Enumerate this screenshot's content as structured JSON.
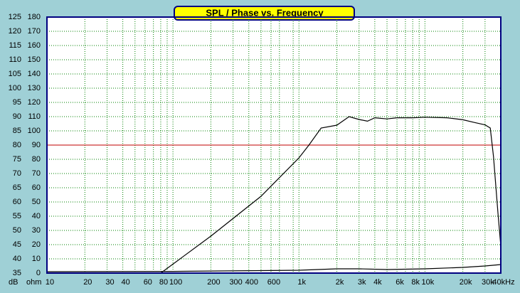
{
  "chart_data": {
    "type": "line",
    "title": "SPL / Phase vs. Frequency",
    "y_axis_label": "dB",
    "y2_axis_label": "ohm",
    "log_x": true,
    "grid": true,
    "xlim": [
      10,
      40000
    ],
    "xticks": [
      10,
      20,
      30,
      40,
      60,
      80,
      100,
      200,
      300,
      400,
      600,
      {
        "value": 1000,
        "label": "1k"
      },
      {
        "value": 2000,
        "label": "2k"
      },
      {
        "value": 3000,
        "label": "3k"
      },
      {
        "value": 4000,
        "label": "4k"
      },
      {
        "value": 6000,
        "label": "6k"
      },
      {
        "value": 8000,
        "label": "8k"
      },
      {
        "value": 10000,
        "label": "10k"
      },
      {
        "value": 20000,
        "label": "20k"
      },
      {
        "value": 30000,
        "label": "30k"
      },
      {
        "value": 40000,
        "label": "40kHz"
      }
    ],
    "minor_xticks": [
      50,
      70,
      90,
      500,
      700,
      900,
      5000,
      7000,
      9000
    ],
    "ylim": [
      35,
      125
    ],
    "yticks": [
      35,
      40,
      45,
      50,
      55,
      60,
      65,
      70,
      75,
      80,
      85,
      90,
      95,
      100,
      105,
      110,
      115,
      120,
      125
    ],
    "y2lim": [
      0,
      180
    ],
    "y2ticks": [
      0,
      10,
      20,
      30,
      40,
      50,
      60,
      70,
      80,
      90,
      100,
      110,
      120,
      130,
      140,
      150,
      160,
      170,
      180
    ],
    "reference_line": {
      "value": 80,
      "color": "#c00000"
    },
    "series": [
      {
        "name": "SPL",
        "color": "#000000",
        "x": [
          80,
          200,
          500,
          1000,
          1200,
          1500,
          2000,
          2500,
          3000,
          3500,
          4000,
          5000,
          6000,
          8000,
          10000,
          15000,
          20000,
          25000,
          30000,
          33000,
          35000,
          38000,
          40000
        ],
        "values": [
          35,
          48,
          62,
          75.5,
          80,
          86,
          87,
          90,
          89,
          88.4,
          89.6,
          89.2,
          89.6,
          89.6,
          89.8,
          89.6,
          88.9,
          87.9,
          87.1,
          86,
          76,
          56,
          44.5
        ]
      },
      {
        "name": "Impedance",
        "color": "#000000",
        "axis": "y2",
        "x": [
          10,
          100,
          1000,
          2000,
          3000,
          5000,
          10000,
          20000,
          30000,
          40000
        ],
        "values": [
          1,
          1.2,
          2,
          3,
          3,
          2.5,
          3,
          4,
          5,
          6
        ]
      }
    ]
  }
}
